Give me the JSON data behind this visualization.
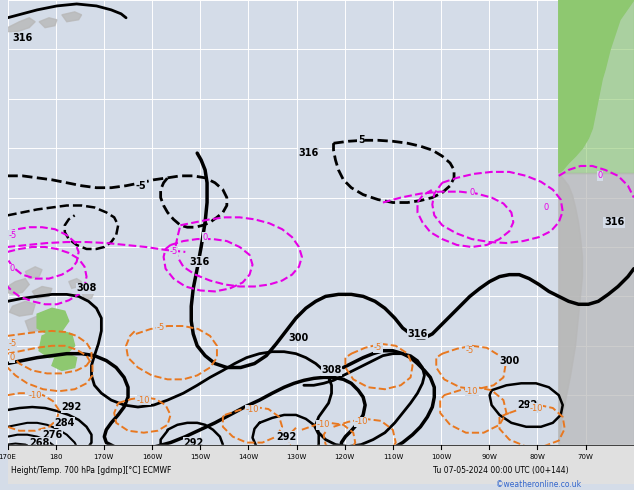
{
  "background_color": "#d4dce8",
  "map_bg": "#d4dce8",
  "land_gray": "#b8b8b8",
  "land_green": "#8ec870",
  "land_light_gray": "#c8c8c8",
  "grid_color": "#ffffff",
  "xlabel": "Height/Temp. 700 hPa [gdmp][°C] ECMWF",
  "date_label": "Tu 07-05-2024 00:00 UTC (00+144)",
  "copyright": "©weatheronline.co.uk",
  "lon_labels": [
    "170E",
    "180",
    "170W",
    "160W",
    "150W",
    "140W",
    "130W",
    "120W",
    "110W",
    "100W",
    "90W",
    "80W",
    "70W"
  ],
  "figsize": [
    6.34,
    4.9
  ],
  "dpi": 100
}
